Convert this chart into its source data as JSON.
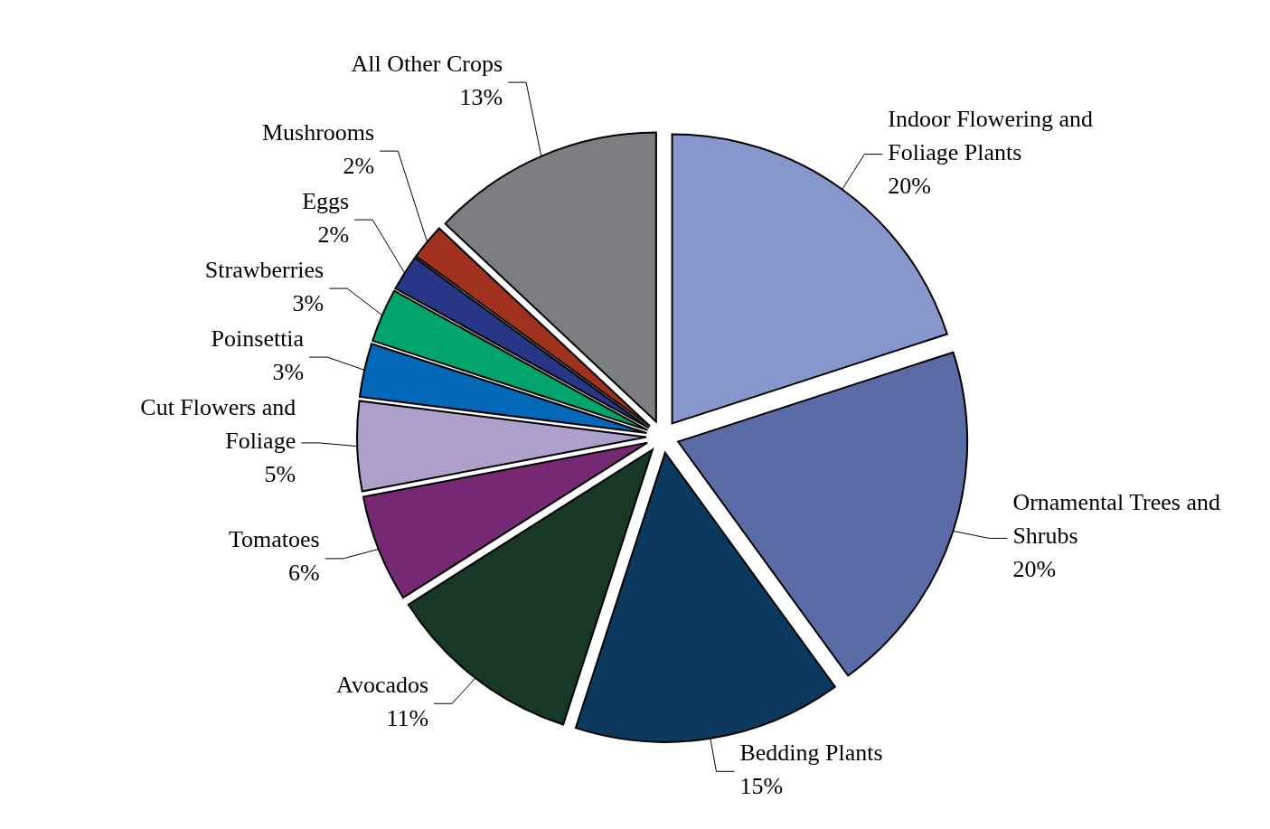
{
  "chart_data": {
    "type": "pie",
    "categories": [
      "Indoor Flowering and Foliage Plants",
      "Ornamental Trees and Shrubs",
      "Bedding Plants",
      "Avocados",
      "Tomatoes",
      "Cut Flowers and Foliage",
      "Poinsettia",
      "Strawberries",
      "Eggs",
      "Mushrooms",
      "All Other Crops"
    ],
    "values": [
      20,
      20,
      15,
      11,
      6,
      5,
      3,
      3,
      2,
      2,
      13
    ],
    "value_labels": [
      "20%",
      "20%",
      "15%",
      "11%",
      "6%",
      "5%",
      "3%",
      "3%",
      "2%",
      "2%",
      "13%"
    ],
    "colors": [
      "#8797cb",
      "#5b6ba6",
      "#0b3a5e",
      "#183826",
      "#762873",
      "#ae9fcb",
      "#0468b8",
      "#01a46b",
      "#283685",
      "#a0311f",
      "#7b7e80"
    ],
    "legend": false
  }
}
